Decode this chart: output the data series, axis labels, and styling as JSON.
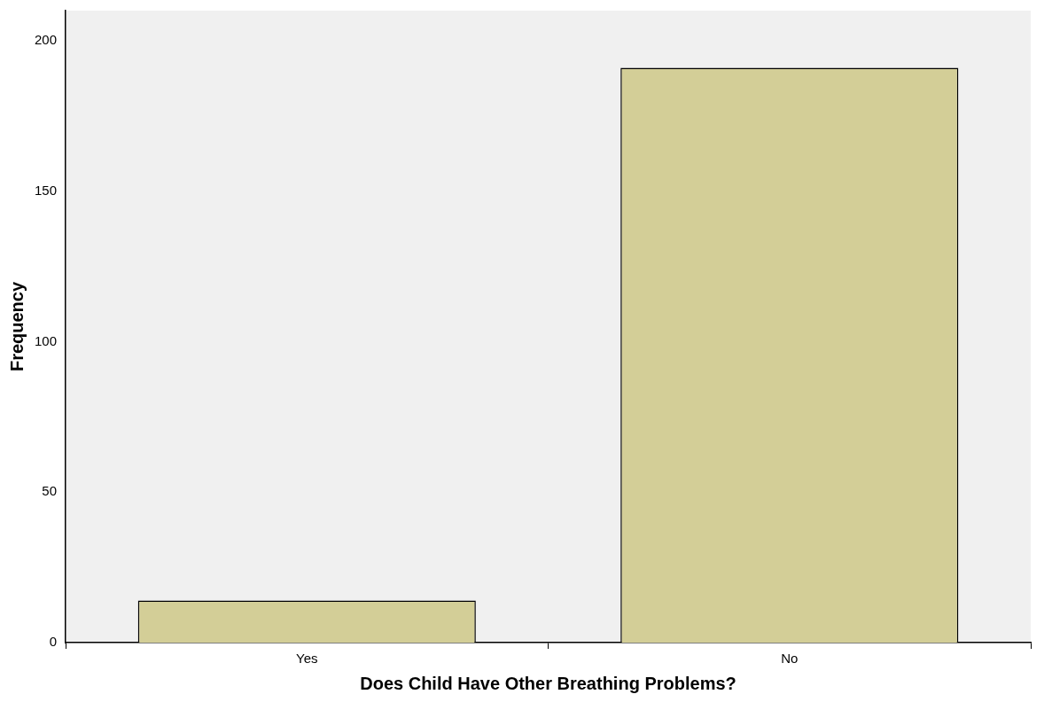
{
  "chart_data": {
    "type": "bar",
    "xlabel": "Does Child Have Other Breathing Problems?",
    "ylabel": "Frequency",
    "categories": [
      "Yes",
      "No"
    ],
    "values": [
      14,
      191
    ],
    "color": "#d3ce97",
    "ylim": [
      0,
      210
    ],
    "yticks": [
      0,
      50,
      100,
      150,
      200
    ],
    "grid": false
  }
}
